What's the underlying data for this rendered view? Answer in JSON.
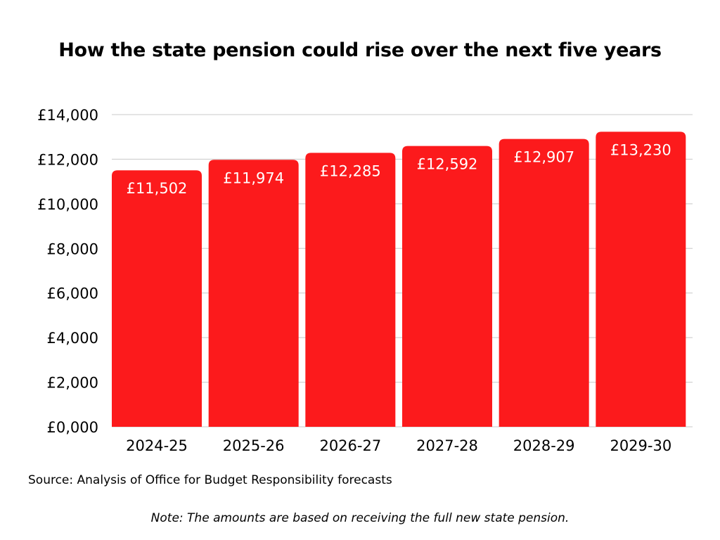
{
  "chart_data": {
    "type": "bar",
    "title": "How the state pension could rise over the next five years",
    "categories": [
      "2024-25",
      "2025-26",
      "2026-27",
      "2027-28",
      "2028-29",
      "2029-30"
    ],
    "values": [
      11502,
      11974,
      12285,
      12592,
      12907,
      13230
    ],
    "data_labels": [
      "£11,502",
      "£11,974",
      "£12,285",
      "£12,592",
      "£12,907",
      "£13,230"
    ],
    "xlabel": "",
    "ylabel": "",
    "ylim": [
      0,
      14000
    ],
    "yticks": [
      0,
      2000,
      4000,
      6000,
      8000,
      10000,
      12000,
      14000
    ],
    "ytick_labels": [
      "£0,000",
      "£2,000",
      "£4,000",
      "£6,000",
      "£8,000",
      "£10,000",
      "£12,000",
      "£14,000"
    ],
    "grid": true,
    "legend": "none",
    "bar_color": "#fc1a1c",
    "source": "Source: Analysis of Office for Budget Responsibility forecasts",
    "note": "Note: The amounts are based on receiving the full new state pension."
  }
}
